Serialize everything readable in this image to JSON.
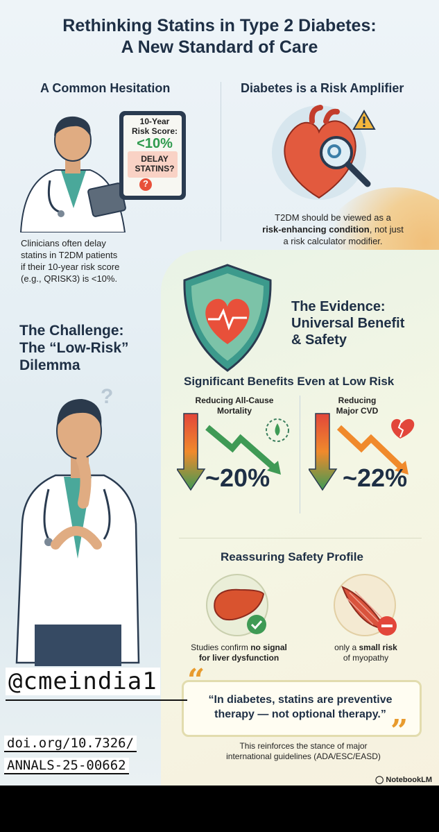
{
  "title_line1": "Rethinking Statins in Type 2 Diabetes:",
  "title_line2": "A New Standard of Care",
  "hesitation": {
    "heading": "A Common Hesitation",
    "tablet_line1": "10-Year",
    "tablet_line2": "Risk Score:",
    "tablet_value": "<10%",
    "tablet_delay1": "DELAY",
    "tablet_delay2": "STATINS?",
    "tablet_q": "?",
    "text_lines": [
      "Clinicians often delay",
      "statins in T2DM patients",
      "if their 10-year risk score",
      "(e.g., QRISK3) is <10%."
    ]
  },
  "amplifier": {
    "heading": "Diabetes is a Risk Amplifier",
    "text_line1": "T2DM should be viewed as a",
    "text_bold": "risk-enhancing condition",
    "text_line2_rest": ", not just",
    "text_line3": "a risk calculator modifier."
  },
  "challenge": {
    "line1": "The Challenge:",
    "line2": "The “Low-Risk”",
    "line3": "Dilemma"
  },
  "evidence": {
    "line1": "The Evidence:",
    "line2": "Universal Benefit",
    "line3": "& Safety"
  },
  "benefits": {
    "heading": "Significant Benefits Even at Low Risk",
    "left_label1": "Reducing All-Cause",
    "left_label2": "Mortality",
    "left_value": "~20%",
    "right_label1": "Reducing",
    "right_label2": "Major CVD",
    "right_value": "~22%"
  },
  "safety": {
    "heading": "Reassuring Safety Profile",
    "liver_line1_pre": "Studies confirm ",
    "liver_line1_bold": "no signal",
    "liver_line2": "for liver dysfunction",
    "muscle_line1_pre": "only a ",
    "muscle_line1_bold": "small risk",
    "muscle_line2": "of myopathy"
  },
  "quote": {
    "line1": "“In diabetes, statins are preventive",
    "line2": "therapy — not optional therapy.”",
    "open_mark": "“",
    "close_mark": "”"
  },
  "footer": {
    "line1": "This reinforces the stance of major",
    "line2": "international guidelines (ADA/ESC/EASD)",
    "brand": "NotebookLM"
  },
  "overlay": {
    "handle": "@cmeindia1",
    "doi_line1": "doi.org/10.7326/",
    "doi_line2": "ANNALS-25-00662"
  },
  "colors": {
    "navy": "#1e2f45",
    "green_arrow": "#3f9a55",
    "orange_arrow": "#f08a2c",
    "red_arrow": "#e2463a",
    "heart_red": "#e8503a",
    "shield_green": "#3c9a8c"
  },
  "icons": [
    "doctor-figure",
    "tablet-icon",
    "heart-magnifier-icon",
    "warning-icon",
    "shield-heart-icon",
    "water-drop-icon",
    "broken-heart-icon",
    "liver-icon",
    "muscle-icon",
    "check-icon",
    "minus-icon"
  ]
}
